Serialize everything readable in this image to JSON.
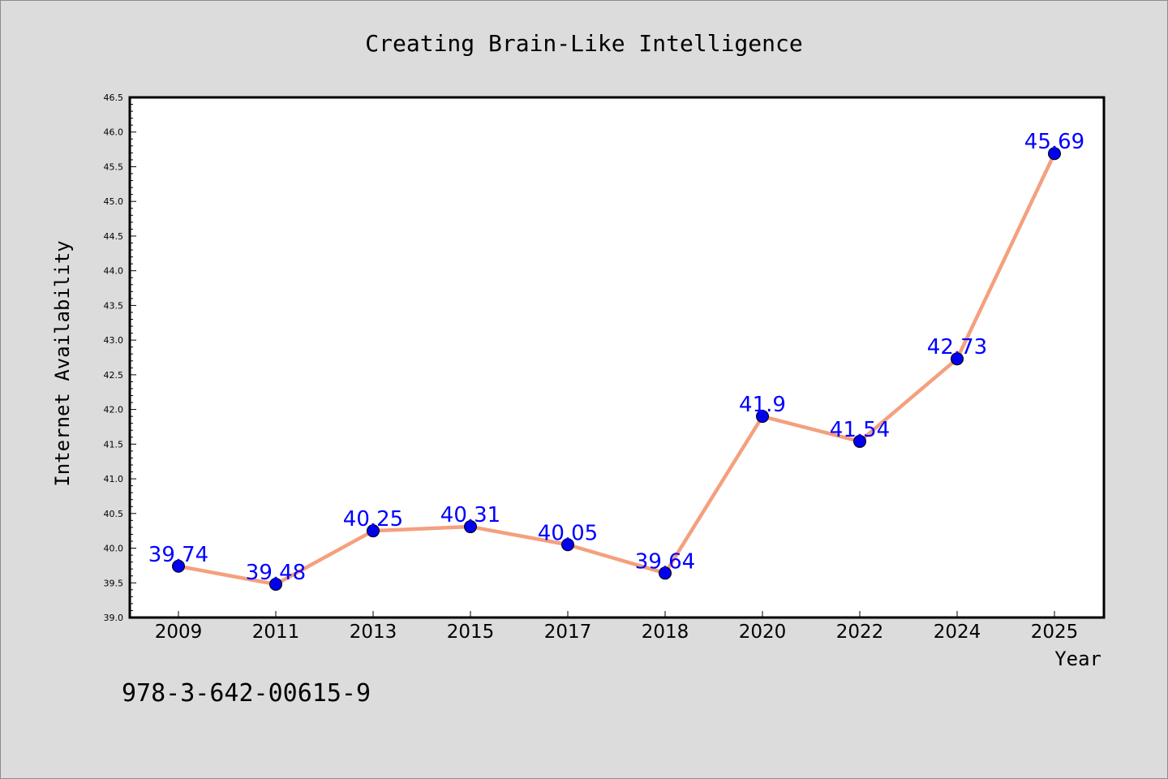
{
  "chart_data": {
    "type": "line",
    "title": "Creating Brain-Like Intelligence",
    "xlabel": "Year",
    "ylabel": "Internet Availability",
    "categories": [
      "2009",
      "2011",
      "2013",
      "2015",
      "2017",
      "2018",
      "2020",
      "2022",
      "2024",
      "2025"
    ],
    "values": [
      39.74,
      39.48,
      40.25,
      40.31,
      40.05,
      39.64,
      41.9,
      41.54,
      42.73,
      45.69
    ],
    "data_labels": [
      "39.74",
      "39.48",
      "40.25",
      "40.31",
      "40.05",
      "39.64",
      "41.9",
      "41.54",
      "42.73",
      "45.69"
    ],
    "ylim": [
      39.0,
      46.5
    ],
    "y_ticks": [
      "39.0",
      "39.5",
      "40.0",
      "40.5",
      "41.0",
      "41.5",
      "42.0",
      "42.5",
      "43.0",
      "43.5",
      "44.0",
      "44.5",
      "45.0",
      "45.5",
      "46.0",
      "46.5"
    ],
    "grid": false,
    "line_color": "#f4a07e",
    "marker_color": "#0000ee",
    "label_color": "#0000ff",
    "background_color": "#dcdcdc",
    "plot_background_color": "#ffffff"
  },
  "annotation": "978-3-642-00615-9"
}
